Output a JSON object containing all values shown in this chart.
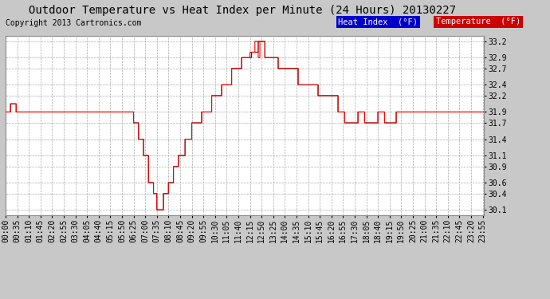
{
  "title": "Outdoor Temperature vs Heat Index per Minute (24 Hours) 20130227",
  "copyright": "Copyright 2013 Cartronics.com",
  "ylabel_right": [
    "33.2",
    "32.9",
    "32.7",
    "32.4",
    "32.2",
    "31.9",
    "31.7",
    "31.4",
    "31.1",
    "30.9",
    "30.6",
    "30.4",
    "30.1"
  ],
  "ymin": 30.0,
  "ymax": 33.3,
  "bg_color": "#c8c8c8",
  "plot_bg": "#ffffff",
  "grid_color": "#aaaaaa",
  "temp_color": "#ff0000",
  "heat_color": "#222222",
  "legend_heat_bg": "#0000cc",
  "legend_temp_bg": "#cc0000",
  "minutes_per_day": 1440,
  "tick_interval_minutes": 35,
  "title_fontsize": 10,
  "copyright_fontsize": 7,
  "tick_fontsize": 7
}
